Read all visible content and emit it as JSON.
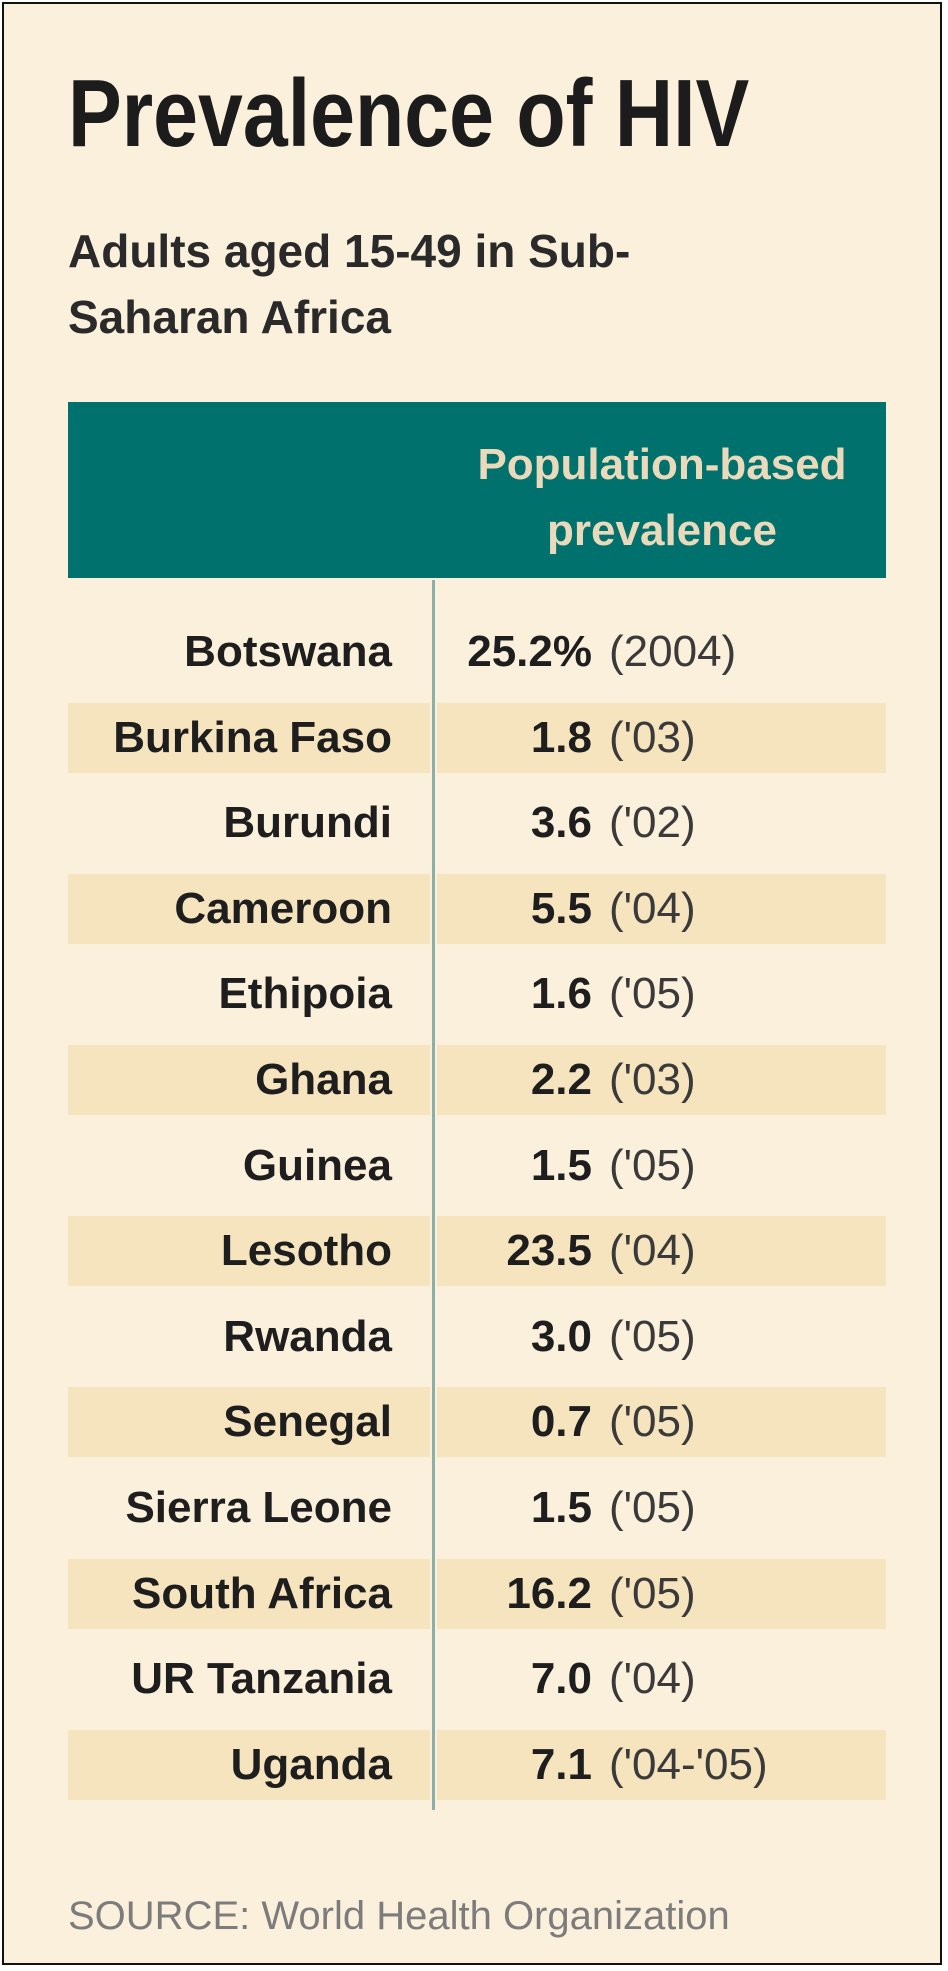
{
  "chart_data": {
    "type": "table",
    "title": "Prevalence of HIV",
    "subtitle": "Adults aged 15-49 in Sub-Saharan Africa",
    "column_header": "Population-based prevalence",
    "rows": [
      {
        "country": "Botswana",
        "value": 25.2,
        "value_text": "25.2%",
        "year_text": "(2004)"
      },
      {
        "country": "Burkina Faso",
        "value": 1.8,
        "value_text": "1.8",
        "year_text": "('03)"
      },
      {
        "country": "Burundi",
        "value": 3.6,
        "value_text": "3.6",
        "year_text": "('02)"
      },
      {
        "country": "Cameroon",
        "value": 5.5,
        "value_text": "5.5",
        "year_text": "('04)"
      },
      {
        "country": "Ethipoia",
        "value": 1.6,
        "value_text": "1.6",
        "year_text": "('05)"
      },
      {
        "country": "Ghana",
        "value": 2.2,
        "value_text": "2.2",
        "year_text": "('03)"
      },
      {
        "country": "Guinea",
        "value": 1.5,
        "value_text": "1.5",
        "year_text": "('05)"
      },
      {
        "country": "Lesotho",
        "value": 23.5,
        "value_text": "23.5",
        "year_text": "('04)"
      },
      {
        "country": "Rwanda",
        "value": 3.0,
        "value_text": "3.0",
        "year_text": "('05)"
      },
      {
        "country": "Senegal",
        "value": 0.7,
        "value_text": "0.7",
        "year_text": "('05)"
      },
      {
        "country": "Sierra Leone",
        "value": 1.5,
        "value_text": "1.5",
        "year_text": "('05)"
      },
      {
        "country": "South Africa",
        "value": 16.2,
        "value_text": "16.2",
        "year_text": "('05)"
      },
      {
        "country": "UR Tanzania",
        "value": 7.0,
        "value_text": "7.0",
        "year_text": "('04)"
      },
      {
        "country": "Uganda",
        "value": 7.1,
        "value_text": "7.1",
        "year_text": "('04-'05)"
      }
    ],
    "source": "SOURCE: World Health Organization"
  },
  "colors": {
    "background": "#fbf0dc",
    "header_band": "#00716d",
    "header_text": "#ead9bb",
    "row_stripe": "#f5e4bd",
    "divider": "#8cafaa",
    "text": "#1e1e1e",
    "source_text": "#7c7c7c"
  }
}
